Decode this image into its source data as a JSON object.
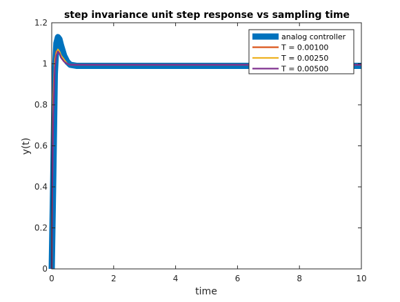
{
  "chart_data": {
    "type": "line",
    "title": "step invariance unit step response vs sampling time",
    "xlabel": "time",
    "ylabel": "y(t)",
    "xlim": [
      0,
      10
    ],
    "ylim": [
      0,
      1.2
    ],
    "xticks": [
      0,
      2,
      4,
      6,
      8,
      10
    ],
    "yticks": [
      0,
      0.2,
      0.4,
      0.6,
      0.8,
      1,
      1.2
    ],
    "xtick_labels": [
      "0",
      "2",
      "4",
      "6",
      "8",
      "10"
    ],
    "ytick_labels": [
      "0",
      "0.2",
      "0.4",
      "0.6",
      "0.8",
      "1",
      "1.2"
    ],
    "grid": false,
    "legend_position": "top-right",
    "series": [
      {
        "name": "analog controller",
        "color": "#0072BD",
        "x": [
          0,
          0.05,
          0.1,
          0.15,
          0.2,
          0.25,
          0.3,
          0.4,
          0.5,
          0.6,
          0.8,
          1,
          1.5,
          2,
          3,
          4,
          6,
          8,
          10
        ],
        "y": [
          0,
          0.45,
          0.95,
          1.1,
          1.13,
          1.12,
          1.09,
          1.04,
          1.01,
          0.995,
          0.99,
          0.99,
          0.99,
          0.99,
          0.99,
          0.99,
          0.99,
          0.99,
          0.99
        ]
      },
      {
        "name": "T = 0.00100",
        "color": "#D95319",
        "x": [
          0,
          0.02,
          0.05,
          0.1,
          0.15,
          0.2,
          0.25,
          0.3,
          0.4,
          0.5,
          0.6,
          0.8,
          1,
          2,
          4,
          6,
          8,
          10
        ],
        "y": [
          0,
          0.5,
          0.85,
          1.02,
          1.06,
          1.065,
          1.05,
          1.03,
          1.01,
          1.0,
          0.995,
          0.995,
          0.995,
          0.995,
          0.995,
          0.995,
          0.995,
          0.995
        ]
      },
      {
        "name": "T = 0.00250",
        "color": "#EDB120",
        "x": [
          0,
          0.02,
          0.05,
          0.1,
          0.15,
          0.2,
          0.25,
          0.3,
          0.4,
          0.5,
          0.6,
          0.8,
          1,
          2,
          4,
          6,
          8,
          10
        ],
        "y": [
          0,
          0.45,
          0.8,
          1.0,
          1.05,
          1.07,
          1.06,
          1.04,
          1.02,
          1.0,
          0.995,
          0.995,
          0.995,
          0.995,
          0.995,
          0.995,
          0.995,
          0.995
        ]
      },
      {
        "name": "T = 0.00500",
        "color": "#7E2F8E",
        "x": [
          0,
          0.02,
          0.05,
          0.1,
          0.15,
          0.2,
          0.25,
          0.3,
          0.4,
          0.5,
          0.6,
          0.8,
          1,
          2,
          4,
          6,
          8,
          10
        ],
        "y": [
          0,
          0.4,
          0.75,
          0.98,
          1.04,
          1.06,
          1.05,
          1.03,
          1.01,
          1.0,
          0.995,
          0.995,
          0.995,
          0.995,
          0.995,
          0.995,
          0.995,
          0.995
        ]
      }
    ]
  }
}
